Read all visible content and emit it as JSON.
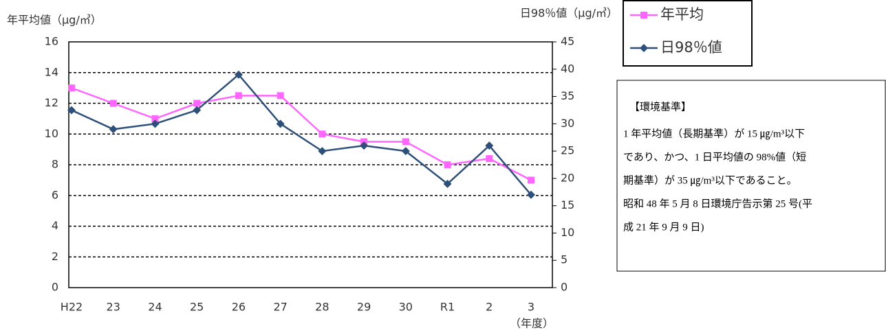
{
  "chart_data": {
    "type": "line",
    "ylabel": "年平均値（μg/㎥）",
    "y2label": "日98％値（μg/㎥）",
    "xlabel": "（年度）",
    "categories": [
      "H22",
      "23",
      "24",
      "25",
      "26",
      "27",
      "28",
      "29",
      "30",
      "R1",
      "2",
      "3"
    ],
    "series": [
      {
        "name": "年平均",
        "color": "#ff66ff",
        "marker": "square",
        "values": [
          13,
          12,
          11,
          12,
          12.5,
          12.5,
          10,
          9.5,
          9.5,
          8,
          8.4,
          7
        ]
      },
      {
        "name": "日98％値",
        "color": "#2e4f78",
        "marker": "diamond",
        "axis": "y2",
        "values": [
          32.5,
          29,
          30,
          32.5,
          39,
          30,
          25,
          26,
          25,
          19,
          26,
          17
        ]
      }
    ],
    "ylim": [
      0,
      16
    ],
    "yticks": [
      0,
      2,
      4,
      6,
      8,
      10,
      12,
      14,
      16
    ],
    "y2lim": [
      0,
      45
    ],
    "y2ticks": [
      0,
      5,
      10,
      15,
      20,
      25,
      30,
      35,
      40,
      45
    ],
    "grid": true,
    "annotations": {
      "heading": "【環境基準】",
      "lines": [
        "1 年平均値（長期基準）が 15 ㎍/m³以下",
        "であり、かつ、1 日平均値の 98%値（短",
        "期基準）が 35 ㎍/m³以下であること。",
        "昭和 48 年 5 月 8 日環境庁告示第 25 号(平",
        "成 21 年 9 月 9 日)"
      ]
    }
  }
}
